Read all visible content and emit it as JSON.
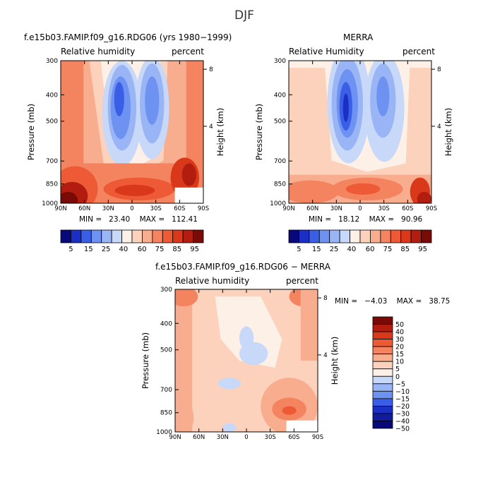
{
  "figure": {
    "title": "DJF"
  },
  "panels": [
    {
      "id": "model",
      "title": "f.e15b03.FAMIP.f09_g16.RDG06 (yrs 1980−1999)",
      "left_label": "Relative humidity",
      "right_label": "percent",
      "stats": "MIN =   23.40    MAX =   112.41"
    },
    {
      "id": "merra",
      "title": "MERRA",
      "left_label": "Relative Humidity",
      "right_label": "percent",
      "stats": "MIN =   18.12    MAX =   90.96"
    },
    {
      "id": "diff",
      "title": "f.e15b03.FAMIP.f09_g16.RDG06 − MERRA",
      "left_label": "Relative humidity",
      "right_label": "percent",
      "stats": "MIN =   −4.03    MAX =   38.75"
    }
  ],
  "axes": {
    "ylabel": "Pressure (mb)",
    "y2label": "Height (km)",
    "pressure_ticks": [
      "300",
      "400",
      "500",
      "700",
      "850",
      "1000"
    ],
    "height_ticks": [
      "8",
      "4"
    ],
    "lat_ticks": [
      "90N",
      "60N",
      "30N",
      "0",
      "30S",
      "60S",
      "90S"
    ]
  },
  "colorbars": {
    "rh_labels": [
      "5",
      "15",
      "25",
      "40",
      "60",
      "75",
      "85",
      "95"
    ],
    "rh_colors": [
      "#08087a",
      "#1c2fc4",
      "#3a5fe6",
      "#6e92f2",
      "#9ab5f5",
      "#c8d8f8",
      "#fdf0e6",
      "#fcd2bc",
      "#f8ad8f",
      "#f48460",
      "#ee5a35",
      "#d9381b",
      "#b21d0f",
      "#7a0a05"
    ],
    "diff_labels": [
      "50",
      "40",
      "30",
      "20",
      "15",
      "10",
      "5",
      "0",
      "−5",
      "−10",
      "−15",
      "−20",
      "−30",
      "−40",
      "−50"
    ],
    "diff_colors": [
      "#7a0a05",
      "#b21d0f",
      "#d9381b",
      "#ee5a35",
      "#f48460",
      "#f8ad8f",
      "#fcd2bc",
      "#fdf0e6",
      "#c8d8f8",
      "#9ab5f5",
      "#6e92f2",
      "#3a5fe6",
      "#1c2fc4",
      "#101c9c",
      "#08087a"
    ]
  },
  "chart_data": [
    {
      "type": "heatmap",
      "title": "f.e15b03.FAMIP.f09_g16.RDG06 (yrs 1980−1999)",
      "subtitle": "Relative humidity (percent)",
      "xlabel": "",
      "ylabel": "Pressure (mb)",
      "y2label": "Height (km)",
      "x_ticks": [
        "90N",
        "60N",
        "30N",
        "0",
        "30S",
        "60S",
        "90S"
      ],
      "y_ticks": [
        300,
        400,
        500,
        700,
        850,
        1000
      ],
      "min": 23.4,
      "max": 112.41
    },
    {
      "type": "heatmap",
      "title": "MERRA",
      "subtitle": "Relative Humidity (percent)",
      "xlabel": "",
      "ylabel": "Pressure (mb)",
      "y2label": "Height (km)",
      "x_ticks": [
        "90N",
        "60N",
        "30N",
        "0",
        "30S",
        "60S",
        "90S"
      ],
      "y_ticks": [
        300,
        400,
        500,
        700,
        850,
        1000
      ],
      "min": 18.12,
      "max": 90.96
    },
    {
      "type": "heatmap",
      "title": "f.e15b03.FAMIP.f09_g16.RDG06 − MERRA",
      "subtitle": "Relative humidity (percent)",
      "xlabel": "",
      "ylabel": "Pressure (mb)",
      "y2label": "Height (km)",
      "x_ticks": [
        "90N",
        "60N",
        "30N",
        "0",
        "30S",
        "60S",
        "90S"
      ],
      "y_ticks": [
        300,
        400,
        500,
        700,
        850,
        1000
      ],
      "min": -4.03,
      "max": 38.75
    }
  ]
}
